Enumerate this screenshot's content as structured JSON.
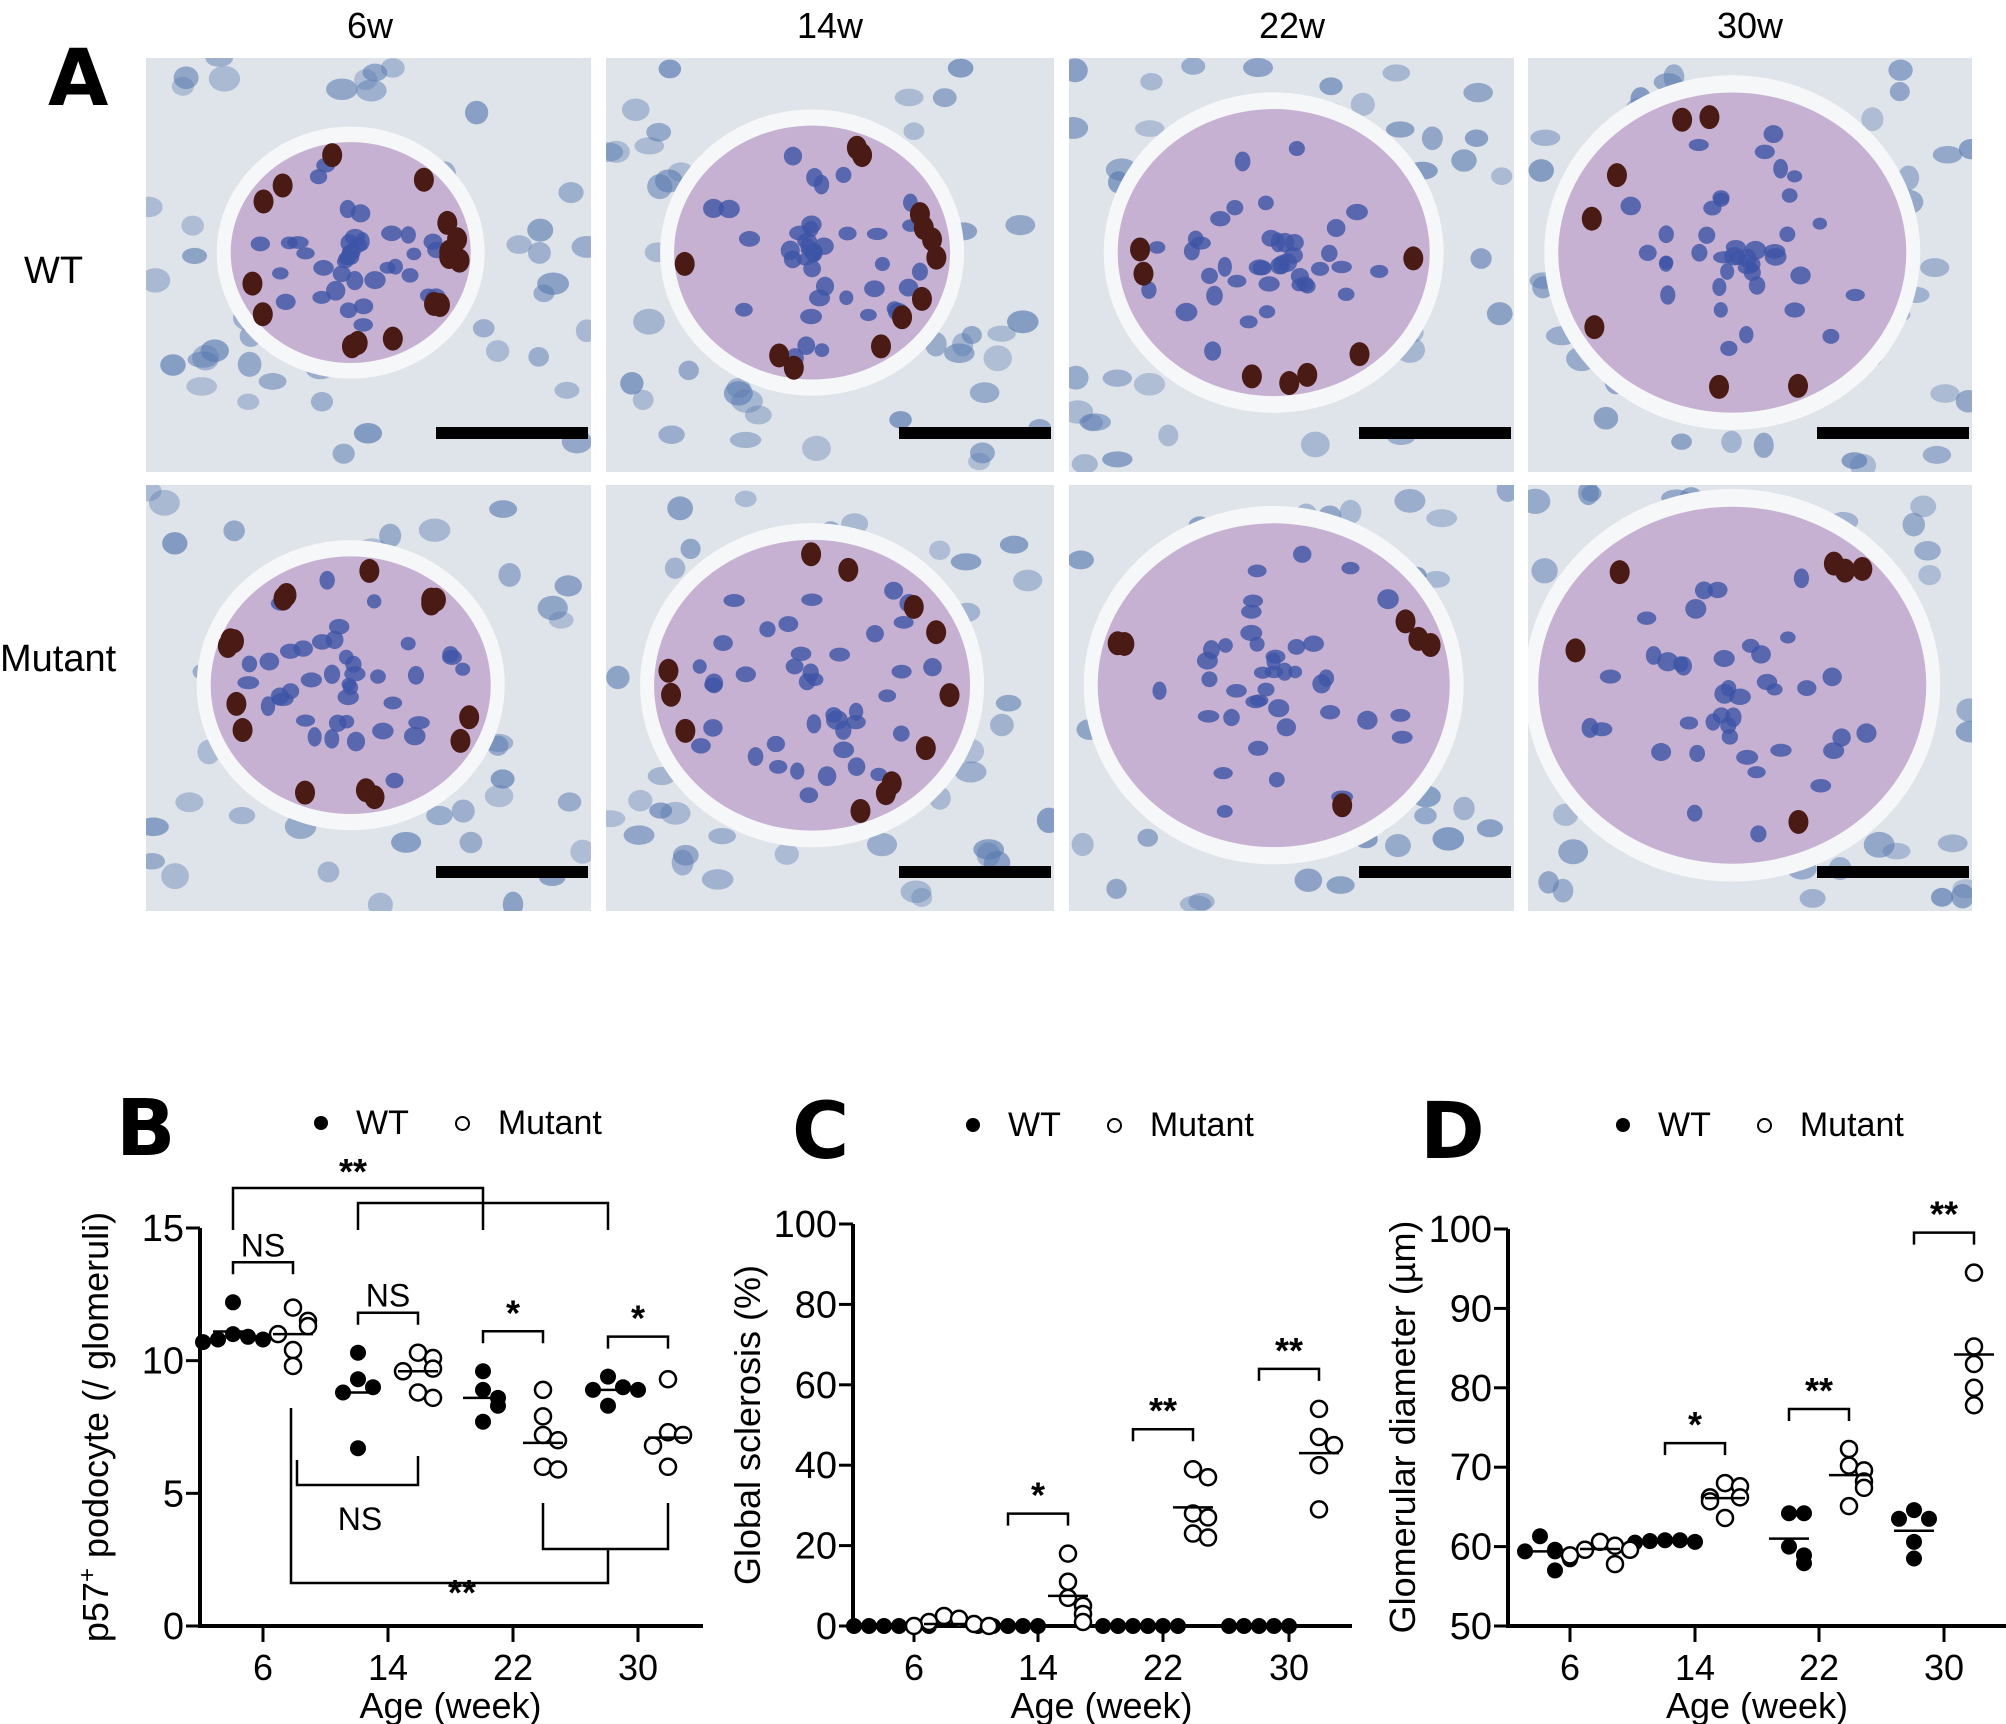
{
  "figure": {
    "panel_letters": {
      "a": "A",
      "b": "B",
      "c": "C",
      "d": "D"
    },
    "panel_a": {
      "column_labels": [
        "6w",
        "14w",
        "22w",
        "30w"
      ],
      "row_labels": [
        "WT",
        "Mutant"
      ],
      "images": [
        {
          "row": "WT",
          "age": "6w"
        },
        {
          "row": "WT",
          "age": "14w"
        },
        {
          "row": "WT",
          "age": "22w"
        },
        {
          "row": "WT",
          "age": "30w"
        },
        {
          "row": "Mutant",
          "age": "6w"
        },
        {
          "row": "Mutant",
          "age": "14w"
        },
        {
          "row": "Mutant",
          "age": "22w"
        },
        {
          "row": "Mutant",
          "age": "30w"
        }
      ],
      "colors": {
        "tissue": "#dfe3ea",
        "nucleus": "#5a7bb0",
        "glomerulus": "#b79ac4",
        "p57_stain": "#4a1a14",
        "scale_bar": "#000000"
      }
    },
    "legend": {
      "wt": "WT",
      "mutant": "Mutant"
    }
  },
  "chart_data": [
    {
      "id": "B",
      "type": "scatter",
      "title": "",
      "xlabel": "Age (week)",
      "ylabel": "p57⁺ podocyte (/ glomeruli)",
      "ylabel_main": "p57",
      "ylabel_sup": "+",
      "ylabel_rest": " podocyte (/ glomeruli)",
      "categories": [
        "6",
        "14",
        "22",
        "30"
      ],
      "yticks": [
        0,
        5,
        10,
        15
      ],
      "ylim": [
        0,
        15
      ],
      "legend": [
        "WT",
        "Mutant"
      ],
      "series": [
        {
          "name": "WT",
          "marker": "filled",
          "values": [
            [
              12.2,
              11.0,
              10.9,
              10.8,
              10.8,
              10.7
            ],
            [
              10.3,
              9.3,
              9.0,
              8.8,
              6.7
            ],
            [
              9.6,
              8.9,
              8.6,
              8.3,
              7.7
            ],
            [
              9.4,
              9.0,
              8.9,
              8.9,
              8.3
            ]
          ],
          "means": [
            11.1,
            8.8,
            8.6,
            8.9
          ]
        },
        {
          "name": "Mutant",
          "marker": "open",
          "values": [
            [
              12.0,
              11.5,
              11.3,
              11.0,
              10.4,
              9.8
            ],
            [
              10.3,
              10.1,
              9.7,
              9.6,
              8.8,
              8.6
            ],
            [
              8.9,
              7.9,
              7.2,
              7.0,
              6.0,
              5.9
            ],
            [
              9.3,
              7.3,
              7.2,
              6.8,
              6.0
            ]
          ],
          "means": [
            11.0,
            9.6,
            6.9,
            7.1
          ]
        }
      ],
      "annotations": [
        {
          "type": "pair",
          "group": 0,
          "label": "NS"
        },
        {
          "type": "pair",
          "group": 1,
          "label": "NS"
        },
        {
          "type": "pair",
          "group": 2,
          "label": "*"
        },
        {
          "type": "pair",
          "group": 3,
          "label": "*"
        },
        {
          "type": "between",
          "desc": "WT 6 vs WT 22/30",
          "label": "**"
        },
        {
          "type": "between",
          "desc": "Mutant 6 vs Mutant 14",
          "label": "NS"
        },
        {
          "type": "between",
          "desc": "Mutant 6 vs Mutant 22/30",
          "label": "**"
        }
      ]
    },
    {
      "id": "C",
      "type": "scatter",
      "title": "",
      "xlabel": "Age (week)",
      "ylabel": "Global sclerosis (%)",
      "categories": [
        "6",
        "14",
        "22",
        "30"
      ],
      "yticks": [
        0,
        20,
        40,
        60,
        80,
        100
      ],
      "ylim": [
        0,
        100
      ],
      "legend": [
        "WT",
        "Mutant"
      ],
      "series": [
        {
          "name": "WT",
          "marker": "filled",
          "values": [
            [
              0,
              0,
              0,
              0,
              0,
              0
            ],
            [
              0,
              0,
              0,
              0,
              0
            ],
            [
              0,
              0,
              0,
              0,
              0,
              0
            ],
            [
              0,
              0,
              0,
              0,
              0
            ]
          ],
          "means": [
            0,
            0,
            0,
            0
          ]
        },
        {
          "name": "Mutant",
          "marker": "open",
          "values": [
            [
              2.5,
              1.8,
              1.0,
              0.5,
              0,
              0
            ],
            [
              18,
              11,
              7,
              5,
              3,
              1
            ],
            [
              39,
              37,
              28,
              27,
              23,
              22
            ],
            [
              54,
              47,
              45,
              40,
              29
            ]
          ],
          "means": [
            0.5,
            7.5,
            29.5,
            43
          ]
        }
      ],
      "annotations": [
        {
          "type": "pair",
          "group": 1,
          "label": "*"
        },
        {
          "type": "pair",
          "group": 2,
          "label": "**"
        },
        {
          "type": "pair",
          "group": 3,
          "label": "**"
        }
      ]
    },
    {
      "id": "D",
      "type": "scatter",
      "title": "",
      "xlabel": "Age (week)",
      "ylabel": "Glomerular diameter (µm)",
      "categories": [
        "6",
        "14",
        "22",
        "30"
      ],
      "yticks": [
        50,
        60,
        70,
        80,
        90,
        100
      ],
      "ylim": [
        50,
        100
      ],
      "legend": [
        "WT",
        "Mutant"
      ],
      "series": [
        {
          "name": "WT",
          "marker": "filled",
          "values": [
            [
              61.3,
              59.6,
              59.4,
              59.4,
              58.4,
              57.0
            ],
            [
              60.8,
              60.8,
              60.7,
              60.6,
              60.5
            ],
            [
              64.2,
              64.2,
              60.0,
              58.9,
              57.9
            ],
            [
              64.6,
              63.5,
              63.5,
              60.6,
              58.5
            ]
          ],
          "means": [
            59.4,
            60.7,
            61.0,
            62.0
          ]
        },
        {
          "name": "Mutant",
          "marker": "open",
          "values": [
            [
              60.6,
              60.1,
              59.6,
              59.6,
              58.9,
              57.8
            ],
            [
              68.0,
              67.6,
              66.2,
              66.2,
              65.7,
              63.6
            ],
            [
              72.3,
              70.2,
              69.6,
              68.2,
              67.4,
              65.1
            ],
            [
              94.5,
              85.2,
              83.0,
              80.0,
              77.8
            ]
          ],
          "means": [
            59.7,
            66.1,
            69.0,
            84.2
          ]
        }
      ],
      "annotations": [
        {
          "type": "pair",
          "group": 1,
          "label": "*"
        },
        {
          "type": "pair",
          "group": 2,
          "label": "**"
        },
        {
          "type": "pair",
          "group": 3,
          "label": "**"
        }
      ]
    }
  ]
}
